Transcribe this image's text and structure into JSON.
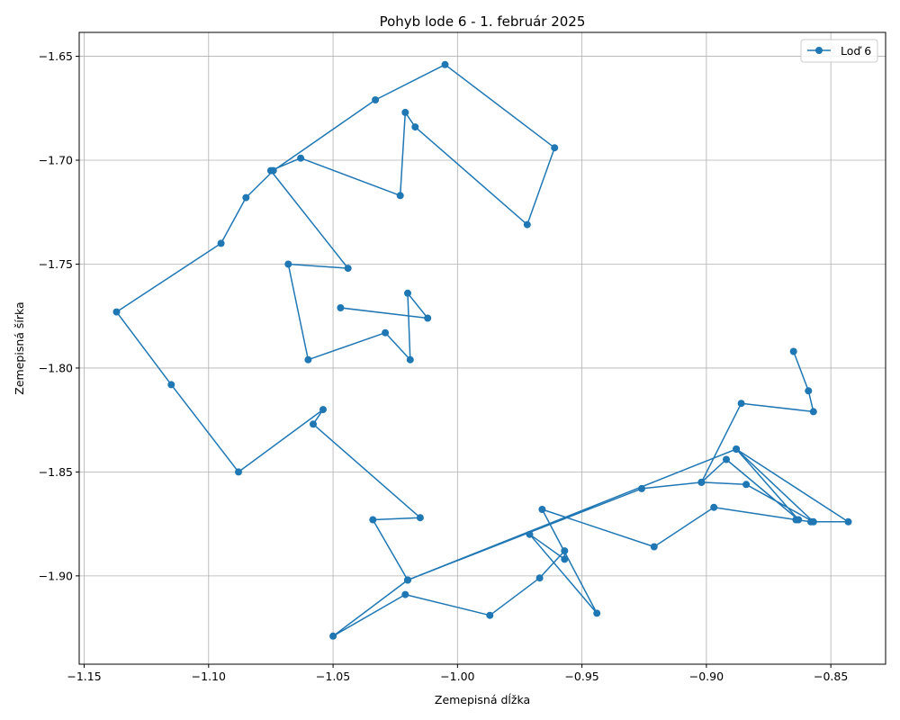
{
  "chart_data": {
    "type": "line",
    "title": "Pohyb lode 6 - 1. február 2025",
    "xlabel": "Zemepisná dĺžka",
    "ylabel": "Zemepisná šírka",
    "xlim": [
      -1.152,
      -0.828
    ],
    "ylim": [
      -1.9425,
      -1.6385
    ],
    "grid": true,
    "legend_position": "top-right",
    "xticks": [
      -1.15,
      -1.1,
      -1.05,
      -1.0,
      -0.95,
      -0.9,
      -0.85
    ],
    "xtick_labels": [
      "−1.15",
      "−1.10",
      "−1.05",
      "−1.00",
      "−0.95",
      "−0.90",
      "−0.85"
    ],
    "yticks": [
      -1.65,
      -1.7,
      -1.75,
      -1.8,
      -1.85,
      -1.9
    ],
    "ytick_labels": [
      "−1.65",
      "−1.70",
      "−1.75",
      "−1.80",
      "−1.85",
      "−1.90"
    ],
    "color": "#1f77b4",
    "series": [
      {
        "name": "Loď 6",
        "x": [
          -0.865,
          -0.859,
          -0.857,
          -0.886,
          -0.902,
          -0.926,
          -1.02,
          -1.05,
          -1.021,
          -0.987,
          -0.967,
          -0.957,
          -0.957,
          -0.971,
          -0.944,
          -0.966,
          -0.921,
          -0.897,
          -0.864,
          -0.858,
          -0.843,
          -0.888,
          -0.863,
          -0.892,
          -0.902,
          -0.884,
          -0.857,
          -0.888,
          -1.02,
          -1.034,
          -1.015,
          -1.058,
          -1.054,
          -1.088,
          -1.115,
          -1.137,
          -1.095,
          -1.085,
          -1.074,
          -1.033,
          -1.005,
          -0.961,
          -0.972,
          -1.017,
          -1.021,
          -1.023,
          -1.063,
          -1.075,
          -1.044,
          -1.068,
          -1.06,
          -1.029,
          -1.019,
          -1.02,
          -1.012,
          -1.047
        ],
        "y": [
          -1.792,
          -1.811,
          -1.821,
          -1.817,
          -1.855,
          -1.858,
          -1.902,
          -1.929,
          -1.909,
          -1.919,
          -1.901,
          -1.888,
          -1.892,
          -1.88,
          -1.918,
          -1.868,
          -1.886,
          -1.867,
          -1.873,
          -1.874,
          -1.874,
          -1.839,
          -1.873,
          -1.844,
          -1.855,
          -1.856,
          -1.874,
          -1.839,
          -1.902,
          -1.873,
          -1.872,
          -1.827,
          -1.82,
          -1.85,
          -1.808,
          -1.773,
          -1.74,
          -1.718,
          -1.705,
          -1.671,
          -1.654,
          -1.694,
          -1.731,
          -1.684,
          -1.677,
          -1.717,
          -1.699,
          -1.705,
          -1.752,
          -1.75,
          -1.796,
          -1.783,
          -1.796,
          -1.764,
          -1.776,
          -1.771
        ]
      }
    ]
  }
}
